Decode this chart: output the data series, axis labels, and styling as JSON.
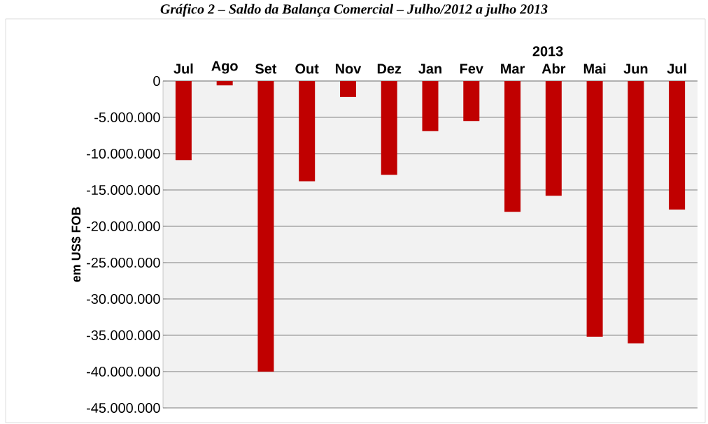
{
  "chart_data": {
    "type": "bar",
    "title": "Gráfico 2 – Saldo da Balança Comercial – Julho/2012 a julho 2013",
    "ylabel": "em US$ FOB",
    "categories": [
      "Jul",
      "Ago",
      "Set",
      "Out",
      "Nov",
      "Dez",
      "Jan",
      "Fev",
      "Mar",
      "Abr",
      "Mai",
      "Jun",
      "Jul"
    ],
    "values": [
      -10900000,
      -600000,
      -40000000,
      -13800000,
      -2200000,
      -12900000,
      -6900000,
      -5500000,
      -18000000,
      -15800000,
      -35200000,
      -36100000,
      -17700000
    ],
    "color": "#c00000",
    "ylim": [
      -45000000,
      0
    ],
    "yticks": [
      {
        "value": 0,
        "label": "0"
      },
      {
        "value": -5000000,
        "label": "-5.000.000"
      },
      {
        "value": -10000000,
        "label": "-10.000.000"
      },
      {
        "value": -15000000,
        "label": "-15.000.000"
      },
      {
        "value": -20000000,
        "label": "-20.000.000"
      },
      {
        "value": -25000000,
        "label": "-25.000.000"
      },
      {
        "value": -30000000,
        "label": "-30.000.000"
      },
      {
        "value": -35000000,
        "label": "-35.000.000"
      },
      {
        "value": -40000000,
        "label": "-40.000.000"
      },
      {
        "value": -45000000,
        "label": "-45.000.000"
      }
    ],
    "grid": "y",
    "annotations": [
      "2013"
    ]
  }
}
